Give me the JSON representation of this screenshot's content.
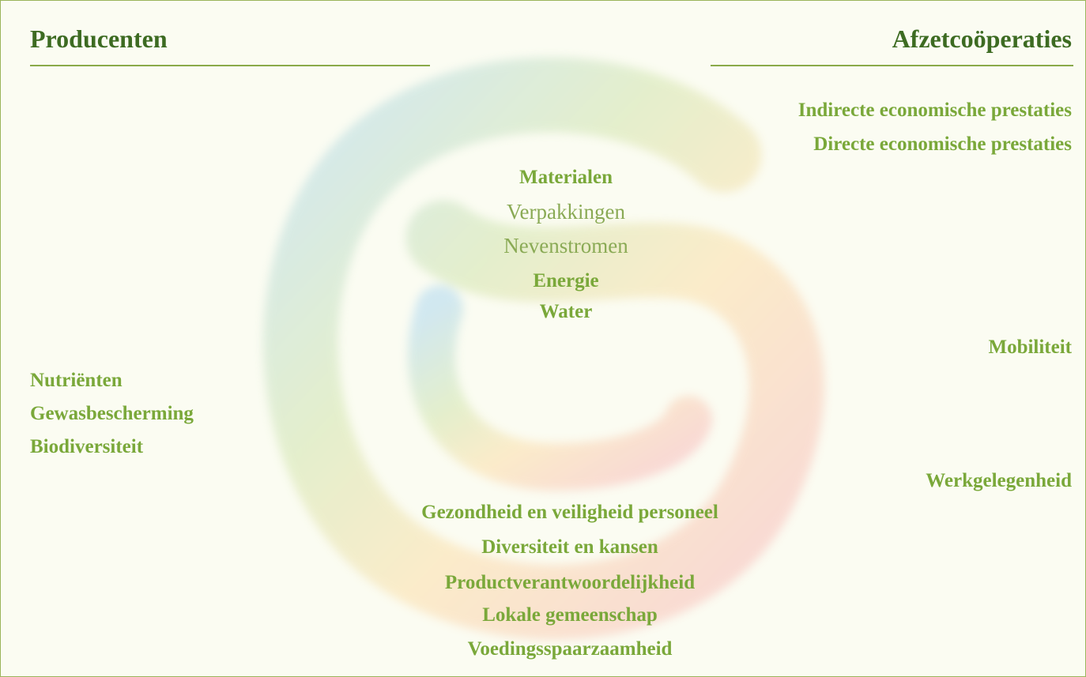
{
  "headers": {
    "left": "Producenten",
    "right": "Afzetcoöperaties"
  },
  "economic": [
    "Indirecte economische prestaties",
    "Directe economische prestaties"
  ],
  "center": [
    "Materialen",
    "Verpakkingen",
    "Nevenstromen",
    "Energie",
    "Water"
  ],
  "mobility": "Mobiliteit",
  "environment": [
    "Nutriënten",
    "Gewasbescherming",
    "Biodiversiteit"
  ],
  "employment": "Werkgelegenheid",
  "social": [
    "Gezondheid en veiligheid personeel",
    "Diversiteit en kansen",
    "Productverantwoordelijkheid",
    "Lokale gemeenschap",
    "Voedingsspaarzaamheid"
  ]
}
